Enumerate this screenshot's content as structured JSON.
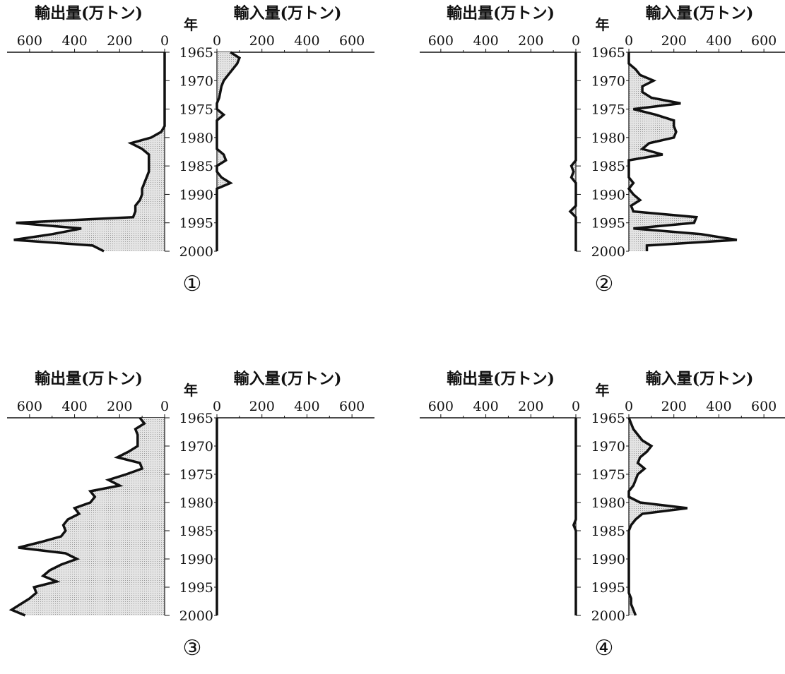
{
  "panel_text": {
    "export_label": "輸出量(万トン)",
    "import_label": "輸入量(万トン)",
    "year_label": "年"
  },
  "colors": {
    "line": "#111111",
    "fill": "#d4d4d4"
  },
  "chart_data": [
    {
      "type": "area",
      "label": "①",
      "ylabel": "年",
      "years_axis": [
        1965,
        1970,
        1975,
        1980,
        1985,
        1990,
        1995,
        2000
      ],
      "export": {
        "label": "輸出量(万トン)",
        "ticks": [
          600,
          400,
          200,
          0
        ],
        "xlim": [
          700,
          0
        ],
        "points": [
          [
            1965,
            0
          ],
          [
            1966,
            0
          ],
          [
            1967,
            0
          ],
          [
            1968,
            0
          ],
          [
            1969,
            0
          ],
          [
            1970,
            0
          ],
          [
            1971,
            0
          ],
          [
            1972,
            0
          ],
          [
            1973,
            0
          ],
          [
            1974,
            0
          ],
          [
            1975,
            0
          ],
          [
            1976,
            0
          ],
          [
            1977,
            0
          ],
          [
            1978,
            0
          ],
          [
            1979,
            15
          ],
          [
            1980,
            60
          ],
          [
            1981,
            150
          ],
          [
            1982,
            100
          ],
          [
            1983,
            70
          ],
          [
            1984,
            70
          ],
          [
            1985,
            70
          ],
          [
            1986,
            70
          ],
          [
            1987,
            80
          ],
          [
            1988,
            90
          ],
          [
            1989,
            100
          ],
          [
            1990,
            100
          ],
          [
            1991,
            110
          ],
          [
            1992,
            130
          ],
          [
            1993,
            130
          ],
          [
            1994,
            140
          ],
          [
            1995,
            660
          ],
          [
            1996,
            370
          ],
          [
            1997,
            500
          ],
          [
            1998,
            670
          ],
          [
            1999,
            320
          ],
          [
            2000,
            270
          ]
        ]
      },
      "import": {
        "label": "輸入量(万トン)",
        "ticks": [
          0,
          200,
          400,
          600
        ],
        "xlim": [
          0,
          700
        ],
        "points": [
          [
            1965,
            60
          ],
          [
            1966,
            100
          ],
          [
            1967,
            90
          ],
          [
            1968,
            70
          ],
          [
            1969,
            50
          ],
          [
            1970,
            30
          ],
          [
            1971,
            20
          ],
          [
            1972,
            15
          ],
          [
            1973,
            10
          ],
          [
            1974,
            0
          ],
          [
            1975,
            0
          ],
          [
            1976,
            30
          ],
          [
            1977,
            0
          ],
          [
            1978,
            0
          ],
          [
            1979,
            0
          ],
          [
            1980,
            0
          ],
          [
            1981,
            0
          ],
          [
            1982,
            0
          ],
          [
            1983,
            30
          ],
          [
            1984,
            40
          ],
          [
            1985,
            0
          ],
          [
            1986,
            0
          ],
          [
            1987,
            20
          ],
          [
            1988,
            60
          ],
          [
            1989,
            0
          ],
          [
            1990,
            0
          ],
          [
            1991,
            0
          ],
          [
            1992,
            0
          ],
          [
            1993,
            0
          ],
          [
            1994,
            0
          ],
          [
            1995,
            0
          ],
          [
            1996,
            0
          ],
          [
            1997,
            0
          ],
          [
            1998,
            0
          ],
          [
            1999,
            0
          ],
          [
            2000,
            0
          ]
        ]
      }
    },
    {
      "type": "area",
      "label": "②",
      "ylabel": "年",
      "years_axis": [
        1965,
        1970,
        1975,
        1980,
        1985,
        1990,
        1995,
        2000
      ],
      "export": {
        "label": "輸出量(万トン)",
        "ticks": [
          600,
          400,
          200,
          0
        ],
        "xlim": [
          700,
          0
        ],
        "points": [
          [
            1965,
            0
          ],
          [
            1966,
            0
          ],
          [
            1967,
            0
          ],
          [
            1968,
            0
          ],
          [
            1969,
            0
          ],
          [
            1970,
            0
          ],
          [
            1971,
            0
          ],
          [
            1972,
            0
          ],
          [
            1973,
            0
          ],
          [
            1974,
            0
          ],
          [
            1975,
            0
          ],
          [
            1976,
            0
          ],
          [
            1977,
            0
          ],
          [
            1978,
            0
          ],
          [
            1979,
            0
          ],
          [
            1980,
            0
          ],
          [
            1981,
            0
          ],
          [
            1982,
            0
          ],
          [
            1983,
            0
          ],
          [
            1984,
            0
          ],
          [
            1985,
            20
          ],
          [
            1986,
            10
          ],
          [
            1987,
            20
          ],
          [
            1988,
            0
          ],
          [
            1989,
            0
          ],
          [
            1990,
            0
          ],
          [
            1991,
            0
          ],
          [
            1992,
            0
          ],
          [
            1993,
            25
          ],
          [
            1994,
            0
          ],
          [
            1995,
            0
          ],
          [
            1996,
            0
          ],
          [
            1997,
            0
          ],
          [
            1998,
            0
          ],
          [
            1999,
            0
          ],
          [
            2000,
            0
          ]
        ]
      },
      "import": {
        "label": "輸入量(万トン)",
        "ticks": [
          0,
          200,
          400,
          600
        ],
        "xlim": [
          0,
          700
        ],
        "points": [
          [
            1965,
            0
          ],
          [
            1966,
            0
          ],
          [
            1967,
            0
          ],
          [
            1968,
            30
          ],
          [
            1969,
            50
          ],
          [
            1970,
            110
          ],
          [
            1971,
            60
          ],
          [
            1972,
            60
          ],
          [
            1973,
            100
          ],
          [
            1974,
            230
          ],
          [
            1975,
            20
          ],
          [
            1976,
            120
          ],
          [
            1977,
            200
          ],
          [
            1978,
            200
          ],
          [
            1979,
            210
          ],
          [
            1980,
            200
          ],
          [
            1981,
            90
          ],
          [
            1982,
            60
          ],
          [
            1983,
            150
          ],
          [
            1984,
            0
          ],
          [
            1985,
            0
          ],
          [
            1986,
            0
          ],
          [
            1987,
            0
          ],
          [
            1988,
            20
          ],
          [
            1989,
            0
          ],
          [
            1990,
            20
          ],
          [
            1991,
            50
          ],
          [
            1992,
            10
          ],
          [
            1993,
            20
          ],
          [
            1994,
            300
          ],
          [
            1995,
            290
          ],
          [
            1996,
            20
          ],
          [
            1997,
            320
          ],
          [
            1998,
            480
          ],
          [
            1999,
            80
          ],
          [
            2000,
            80
          ]
        ]
      }
    },
    {
      "type": "area",
      "label": "③",
      "ylabel": "年",
      "years_axis": [
        1965,
        1970,
        1975,
        1980,
        1985,
        1990,
        1995,
        2000
      ],
      "export": {
        "label": "輸出量(万トン)",
        "ticks": [
          600,
          400,
          200,
          0
        ],
        "xlim": [
          700,
          0
        ],
        "points": [
          [
            1965,
            110
          ],
          [
            1966,
            90
          ],
          [
            1967,
            130
          ],
          [
            1968,
            120
          ],
          [
            1969,
            120
          ],
          [
            1970,
            120
          ],
          [
            1971,
            160
          ],
          [
            1972,
            210
          ],
          [
            1973,
            110
          ],
          [
            1974,
            100
          ],
          [
            1975,
            170
          ],
          [
            1976,
            250
          ],
          [
            1977,
            200
          ],
          [
            1978,
            330
          ],
          [
            1979,
            310
          ],
          [
            1980,
            330
          ],
          [
            1981,
            400
          ],
          [
            1982,
            380
          ],
          [
            1983,
            430
          ],
          [
            1984,
            450
          ],
          [
            1985,
            440
          ],
          [
            1986,
            460
          ],
          [
            1987,
            550
          ],
          [
            1988,
            650
          ],
          [
            1989,
            440
          ],
          [
            1990,
            390
          ],
          [
            1991,
            460
          ],
          [
            1992,
            510
          ],
          [
            1993,
            540
          ],
          [
            1994,
            480
          ],
          [
            1995,
            580
          ],
          [
            1996,
            570
          ],
          [
            1997,
            600
          ],
          [
            1998,
            640
          ],
          [
            1999,
            680
          ],
          [
            2000,
            620
          ]
        ]
      },
      "import": {
        "label": "輸入量(万トン)",
        "ticks": [
          0,
          200,
          400,
          600
        ],
        "xlim": [
          0,
          700
        ],
        "points": [
          [
            1965,
            0
          ],
          [
            1970,
            0
          ],
          [
            1975,
            0
          ],
          [
            1980,
            0
          ],
          [
            1985,
            0
          ],
          [
            1990,
            0
          ],
          [
            1995,
            0
          ],
          [
            2000,
            0
          ]
        ]
      }
    },
    {
      "type": "area",
      "label": "④",
      "ylabel": "年",
      "years_axis": [
        1965,
        1970,
        1975,
        1980,
        1985,
        1990,
        1995,
        2000
      ],
      "export": {
        "label": "輸出量(万トン)",
        "ticks": [
          600,
          400,
          200,
          0
        ],
        "xlim": [
          700,
          0
        ],
        "points": [
          [
            1965,
            0
          ],
          [
            1970,
            0
          ],
          [
            1975,
            0
          ],
          [
            1980,
            0
          ],
          [
            1981,
            0
          ],
          [
            1982,
            0
          ],
          [
            1983,
            0
          ],
          [
            1984,
            10
          ],
          [
            1985,
            0
          ],
          [
            1990,
            0
          ],
          [
            1995,
            0
          ],
          [
            2000,
            0
          ]
        ]
      },
      "import": {
        "label": "輸入量(万トン)",
        "ticks": [
          0,
          200,
          400,
          600
        ],
        "xlim": [
          0,
          700
        ],
        "points": [
          [
            1965,
            0
          ],
          [
            1966,
            10
          ],
          [
            1967,
            20
          ],
          [
            1968,
            40
          ],
          [
            1969,
            60
          ],
          [
            1970,
            100
          ],
          [
            1971,
            80
          ],
          [
            1972,
            50
          ],
          [
            1973,
            40
          ],
          [
            1974,
            70
          ],
          [
            1975,
            40
          ],
          [
            1976,
            30
          ],
          [
            1977,
            20
          ],
          [
            1978,
            0
          ],
          [
            1979,
            0
          ],
          [
            1980,
            50
          ],
          [
            1981,
            260
          ],
          [
            1982,
            60
          ],
          [
            1983,
            30
          ],
          [
            1984,
            10
          ],
          [
            1985,
            0
          ],
          [
            1986,
            0
          ],
          [
            1987,
            0
          ],
          [
            1988,
            0
          ],
          [
            1989,
            0
          ],
          [
            1990,
            0
          ],
          [
            1991,
            0
          ],
          [
            1992,
            0
          ],
          [
            1993,
            0
          ],
          [
            1994,
            0
          ],
          [
            1995,
            0
          ],
          [
            1996,
            0
          ],
          [
            1997,
            10
          ],
          [
            1998,
            10
          ],
          [
            1999,
            20
          ],
          [
            2000,
            30
          ]
        ]
      }
    }
  ]
}
